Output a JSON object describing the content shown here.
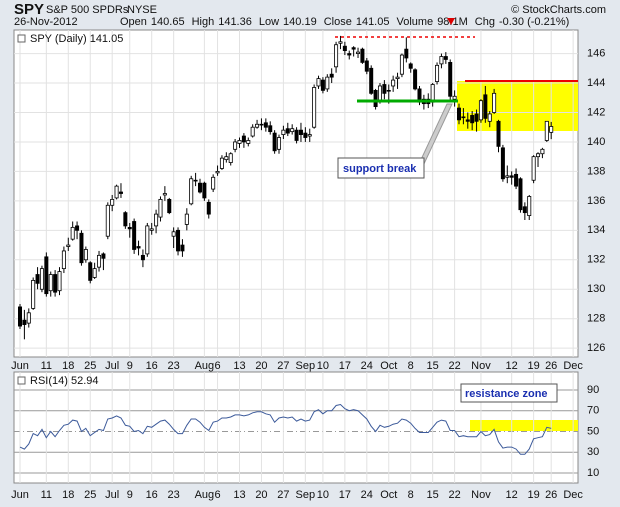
{
  "header": {
    "symbol": "SPY",
    "name": "S&P 500 SPDRs",
    "exchange": "NYSE",
    "date": "26-Nov-2012",
    "source": "© StockCharts.com",
    "stats": [
      {
        "label": "Open",
        "value": 140.65
      },
      {
        "label": "High",
        "value": 141.36
      },
      {
        "label": "Low",
        "value": 140.19
      },
      {
        "label": "Close",
        "value": 141.05
      },
      {
        "label": "Volume",
        "value": "98.1M"
      },
      {
        "label": "Chg",
        "value": "-0.30 (-0.21%)"
      }
    ]
  },
  "chart_data": [
    {
      "type": "candlestick",
      "legend": "SPY (Daily) 141.05",
      "annotations": [
        "support break"
      ],
      "color": "#000000",
      "grid": true,
      "categories": [
        "Jun",
        null,
        null,
        null,
        null,
        null,
        "11",
        null,
        null,
        null,
        null,
        "18",
        null,
        null,
        null,
        null,
        "25",
        null,
        null,
        null,
        null,
        "Jul",
        null,
        null,
        null,
        "9",
        null,
        null,
        null,
        null,
        "16",
        null,
        null,
        null,
        null,
        "23",
        null,
        null,
        null,
        null,
        null,
        null,
        "Aug",
        null,
        null,
        "6",
        null,
        null,
        null,
        null,
        "13",
        null,
        null,
        null,
        null,
        "20",
        null,
        null,
        null,
        null,
        "27",
        null,
        null,
        null,
        null,
        "Sep",
        null,
        null,
        null,
        "10",
        null,
        null,
        null,
        null,
        "17",
        null,
        null,
        null,
        null,
        "24",
        null,
        null,
        null,
        null,
        "Oct",
        null,
        null,
        null,
        null,
        "8",
        null,
        null,
        null,
        null,
        "15",
        null,
        null,
        null,
        null,
        "22",
        null,
        null,
        null,
        null,
        null,
        "Nov",
        null,
        null,
        null,
        null,
        null,
        null,
        "12",
        null,
        null,
        null,
        null,
        "19",
        null,
        null,
        null,
        "26",
        null,
        null,
        null,
        null,
        "Dec"
      ],
      "open": [
        128.8,
        127.9,
        127.7,
        128.7,
        131.0,
        130.0,
        132.2,
        129.9,
        131.0,
        129.9,
        131.4,
        132.9,
        133.4,
        134.3,
        133.8,
        132.0,
        131.8,
        130.8,
        131.5,
        132.4,
        133.6,
        135.7,
        136.2,
        136.6,
        135.2,
        134.2,
        134.6,
        132.9,
        132.3,
        132.4,
        134.0,
        134.3,
        134.9,
        136.4,
        136.1,
        133.6,
        134.0,
        133.0,
        134.4,
        135.8,
        137.4,
        137.2,
        137.2,
        135.9,
        136.8,
        137.9,
        138.2,
        138.8,
        138.6,
        139.5,
        139.9,
        140.4,
        139.9,
        140.4,
        141.0,
        141.2,
        141.3,
        141.1,
        140.6,
        139.5,
        140.5,
        140.9,
        140.7,
        140.8,
        140.8,
        140.6,
        140.4,
        141.0,
        143.8,
        144.2,
        143.6,
        144.6,
        145.1,
        146.7,
        146.5,
        146.0,
        146.4,
        146.0,
        146.3,
        145.5,
        145.0,
        143.5,
        142.8,
        143.9,
        143.5,
        143.8,
        144.3,
        144.6,
        146.3,
        145.3,
        144.9,
        143.6,
        142.9,
        142.9,
        142.7,
        144.1,
        145.3,
        145.8,
        145.4,
        142.9,
        142.3,
        141.7,
        141.5,
        141.8,
        141.9,
        141.5,
        143.2,
        141.4,
        142.0,
        141.4,
        139.6,
        137.6,
        137.7,
        137.8,
        137.5,
        135.6,
        135.0,
        137.4,
        139.0,
        139.2,
        140.1,
        140.65,
        null,
        null,
        null,
        null,
        null
      ],
      "high": [
        129.0,
        128.6,
        128.7,
        130.8,
        131.5,
        131.6,
        132.5,
        131.2,
        131.3,
        131.5,
        132.9,
        133.5,
        134.6,
        134.6,
        134.0,
        132.9,
        131.9,
        131.8,
        132.6,
        132.5,
        135.9,
        136.4,
        137.1,
        137.2,
        135.3,
        134.5,
        134.8,
        133.3,
        132.7,
        134.5,
        134.5,
        135.4,
        136.3,
        137.0,
        136.2,
        134.2,
        134.2,
        133.4,
        135.5,
        137.7,
        137.9,
        137.5,
        137.3,
        136.1,
        137.8,
        138.4,
        139.1,
        139.3,
        139.3,
        140.2,
        140.3,
        140.6,
        140.3,
        141.2,
        141.5,
        141.6,
        141.6,
        141.4,
        140.8,
        140.5,
        141.1,
        141.3,
        141.2,
        141.0,
        141.3,
        141.0,
        140.9,
        143.9,
        144.5,
        144.4,
        144.6,
        145.0,
        146.8,
        147.2,
        146.8,
        146.2,
        146.5,
        146.4,
        146.4,
        145.7,
        145.2,
        143.6,
        144.0,
        144.2,
        143.9,
        144.5,
        144.7,
        146.0,
        147.1,
        145.4,
        145.0,
        143.8,
        143.2,
        143.3,
        144.0,
        145.4,
        146.0,
        146.1,
        145.6,
        143.5,
        142.6,
        142.3,
        142.0,
        142.1,
        142.2,
        142.9,
        143.8,
        142.1,
        143.6,
        141.5,
        139.8,
        138.4,
        138.0,
        138.2,
        137.6,
        135.9,
        136.4,
        139.1,
        139.3,
        139.6,
        141.4,
        141.36,
        null,
        null,
        null,
        null,
        null
      ],
      "low": [
        127.3,
        126.6,
        127.4,
        128.6,
        130.0,
        129.8,
        129.5,
        129.5,
        129.5,
        129.6,
        131.1,
        132.6,
        133.3,
        133.4,
        131.6,
        131.8,
        130.4,
        130.7,
        131.2,
        131.3,
        133.4,
        135.3,
        136.1,
        136.2,
        134.1,
        133.5,
        132.4,
        132.3,
        131.5,
        132.2,
        133.7,
        133.8,
        134.6,
        136.0,
        135.1,
        132.8,
        132.3,
        132.2,
        134.0,
        135.7,
        137.0,
        136.5,
        136.0,
        134.8,
        136.6,
        137.7,
        138.1,
        138.6,
        138.4,
        139.3,
        139.6,
        139.6,
        139.7,
        140.3,
        140.9,
        140.8,
        140.7,
        140.5,
        139.2,
        139.2,
        140.2,
        140.4,
        140.5,
        139.9,
        140.0,
        140.0,
        140.0,
        140.9,
        143.6,
        143.3,
        143.4,
        144.0,
        144.7,
        146.3,
        145.9,
        145.6,
        145.8,
        145.7,
        145.3,
        144.6,
        143.2,
        142.2,
        142.6,
        142.9,
        142.6,
        143.4,
        143.6,
        144.4,
        145.4,
        144.7,
        143.5,
        142.5,
        142.2,
        142.3,
        142.4,
        143.9,
        145.0,
        145.3,
        142.8,
        142.4,
        141.2,
        141.2,
        140.9,
        140.8,
        140.7,
        141.3,
        141.3,
        141.0,
        141.9,
        139.3,
        137.3,
        137.2,
        137.1,
        136.8,
        135.2,
        134.7,
        134.7,
        137.2,
        138.3,
        138.9,
        140.0,
        140.19,
        null,
        null,
        null,
        null,
        null
      ],
      "close": [
        127.5,
        127.6,
        128.4,
        130.6,
        130.4,
        131.4,
        129.7,
        131.0,
        129.8,
        131.2,
        132.6,
        133.0,
        134.2,
        134.0,
        131.8,
        132.7,
        130.6,
        131.4,
        132.3,
        132.1,
        135.7,
        136.1,
        137.0,
        136.5,
        134.3,
        134.1,
        132.7,
        132.8,
        132.0,
        134.3,
        134.1,
        135.1,
        136.1,
        136.5,
        135.2,
        133.9,
        132.6,
        132.6,
        135.1,
        137.5,
        137.4,
        136.6,
        136.2,
        135.1,
        137.6,
        138.0,
        138.9,
        139.0,
        139.2,
        140.0,
        140.1,
        140.0,
        140.1,
        141.0,
        141.2,
        141.2,
        141.0,
        140.7,
        139.4,
        140.3,
        140.8,
        140.6,
        140.9,
        140.1,
        140.5,
        140.3,
        140.5,
        143.7,
        144.3,
        143.5,
        144.4,
        144.4,
        146.6,
        146.8,
        146.2,
        145.9,
        146.3,
        146.1,
        145.4,
        144.8,
        143.3,
        142.4,
        143.8,
        143.3,
        143.5,
        144.2,
        144.4,
        145.9,
        145.7,
        145.0,
        143.6,
        142.7,
        142.6,
        142.6,
        143.9,
        145.2,
        145.8,
        145.6,
        143.1,
        143.1,
        141.5,
        141.7,
        141.4,
        141.3,
        141.4,
        142.8,
        141.6,
        141.9,
        143.3,
        139.7,
        137.5,
        137.7,
        137.6,
        137.0,
        135.4,
        135.2,
        136.3,
        139.0,
        139.2,
        139.5,
        141.4,
        141.05,
        null,
        null,
        null,
        null,
        null
      ],
      "ylim": [
        125.4,
        147.6
      ],
      "yticks": [
        126,
        128,
        130,
        132,
        134,
        136,
        138,
        140,
        142,
        144,
        146
      ]
    },
    {
      "type": "line",
      "legend": "RSI(14) 52.94",
      "annotations": [
        "resistance zone"
      ],
      "color": "#3c5a9a",
      "grid": true,
      "values": [
        35,
        33,
        38,
        48,
        46,
        52,
        44,
        50,
        45,
        51,
        56,
        57,
        61,
        60,
        50,
        53,
        46,
        49,
        52,
        51,
        62,
        63,
        65,
        63,
        56,
        55,
        50,
        51,
        48,
        55,
        54,
        57,
        60,
        61,
        57,
        52,
        48,
        48,
        56,
        62,
        62,
        59,
        54,
        51,
        59,
        60,
        63,
        63,
        64,
        66,
        66,
        65,
        66,
        68,
        69,
        69,
        67,
        66,
        59,
        63,
        64,
        63,
        64,
        60,
        62,
        60,
        61,
        69,
        71,
        67,
        70,
        70,
        75,
        76,
        72,
        70,
        71,
        70,
        66,
        62,
        55,
        50,
        56,
        54,
        55,
        57,
        58,
        62,
        61,
        58,
        53,
        49,
        49,
        49,
        54,
        59,
        61,
        60,
        51,
        51,
        45,
        46,
        45,
        45,
        45,
        50,
        46,
        47,
        52,
        40,
        34,
        35,
        35,
        33,
        28,
        28,
        33,
        43,
        44,
        45,
        54,
        52.94,
        null,
        null,
        null,
        null,
        null
      ],
      "ylim": [
        0.4,
        107.3
      ],
      "yticks": [
        10,
        30,
        50,
        70,
        90
      ]
    }
  ]
}
